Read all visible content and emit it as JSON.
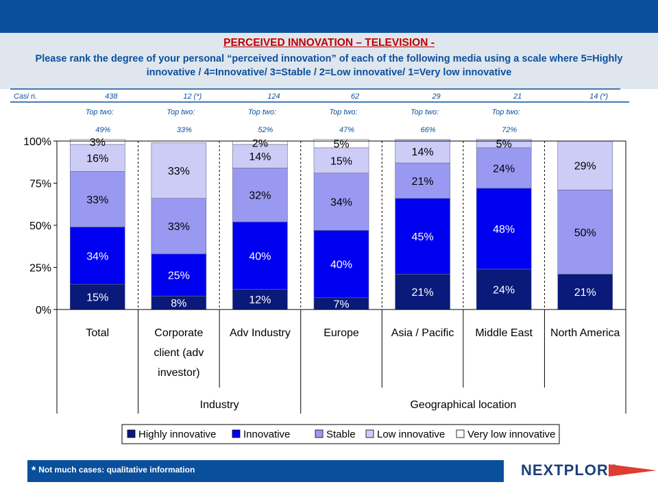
{
  "header": {
    "title": "PERCEIVED INNOVATION – TELEVISION -",
    "subtitle": "Please rank the degree of your personal “perceived innovation” of each of the following media using a scale where 5=Highly innovative / 4=Innovative/ 3=Stable / 2=Low innovative/ 1=Very low innovative"
  },
  "cases_label": "Casi n.",
  "top_two_label": "Top two:",
  "chart_data": {
    "type": "bar",
    "stacked": true,
    "categories": [
      "Total",
      "Corporate client (adv investor)",
      "Adv Industry",
      "Europe",
      "Asia / Pacific",
      "Middle East",
      "North America"
    ],
    "category_lines": [
      [
        "Total"
      ],
      [
        "Corporate",
        "client (adv",
        "investor)"
      ],
      [
        "Adv Industry"
      ],
      [
        "Europe"
      ],
      [
        "Asia / Pacific"
      ],
      [
        "Middle East"
      ],
      [
        "North America"
      ]
    ],
    "cases": [
      "438",
      "12 (*)",
      "124",
      "62",
      "29",
      "21",
      "14 (*)"
    ],
    "top_two": [
      "49%",
      "33%",
      "52%",
      "47%",
      "66%",
      "72%",
      ""
    ],
    "groups": [
      {
        "label": "Industry",
        "from": 1,
        "to": 2
      },
      {
        "label": "Geographical location",
        "from": 3,
        "to": 6
      }
    ],
    "series": [
      {
        "name": "Highly innovative",
        "color": "#0a1a7a",
        "values": [
          15,
          8,
          12,
          7,
          21,
          24,
          21
        ],
        "labels": [
          "15%",
          "8%",
          "12%",
          "7%",
          "21%",
          "24%",
          "21%"
        ]
      },
      {
        "name": "Innovative",
        "color": "#0000f0",
        "values": [
          34,
          25,
          40,
          40,
          45,
          48,
          0
        ],
        "labels": [
          "34%",
          "25%",
          "40%",
          "40%",
          "45%",
          "48%",
          ""
        ]
      },
      {
        "name": "Stable",
        "color": "#9999f2",
        "values": [
          33,
          33,
          32,
          34,
          21,
          24,
          50
        ],
        "labels": [
          "33%",
          "33%",
          "32%",
          "34%",
          "21%",
          "24%",
          "50%"
        ]
      },
      {
        "name": "Low innovative",
        "color": "#ccccf7",
        "values": [
          16,
          33,
          14,
          15,
          14,
          5,
          29
        ],
        "labels": [
          "16%",
          "33%",
          "14%",
          "15%",
          "14%",
          "5%",
          "29%"
        ]
      },
      {
        "name": "Very low innovative",
        "color": "#ffffff",
        "values": [
          3,
          0,
          2,
          5,
          0,
          0,
          0
        ],
        "labels": [
          "3%",
          "",
          "2%",
          "5%",
          "",
          "",
          ""
        ]
      }
    ],
    "ylim": [
      0,
      100
    ],
    "yticks": [
      "0%",
      "25%",
      "50%",
      "75%",
      "100%"
    ],
    "legend_position": "bottom",
    "grid": "dashed vertical separators"
  },
  "footer": {
    "star": "*",
    "note": "Not much cases: qualitative information",
    "logo": "NEXTPLORA"
  }
}
